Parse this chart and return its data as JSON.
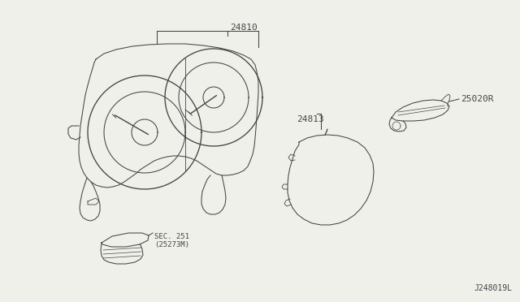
{
  "bg_color": "#f0f0eb",
  "line_color": "#444444",
  "text_color": "#444444",
  "title_label": "24810",
  "part1_label": "24813",
  "part2_label": "25020R",
  "part3_label": "SEC. 251\n(25273M)",
  "footer_label": "J248019L",
  "figsize": [
    6.4,
    3.72
  ],
  "dpi": 100
}
